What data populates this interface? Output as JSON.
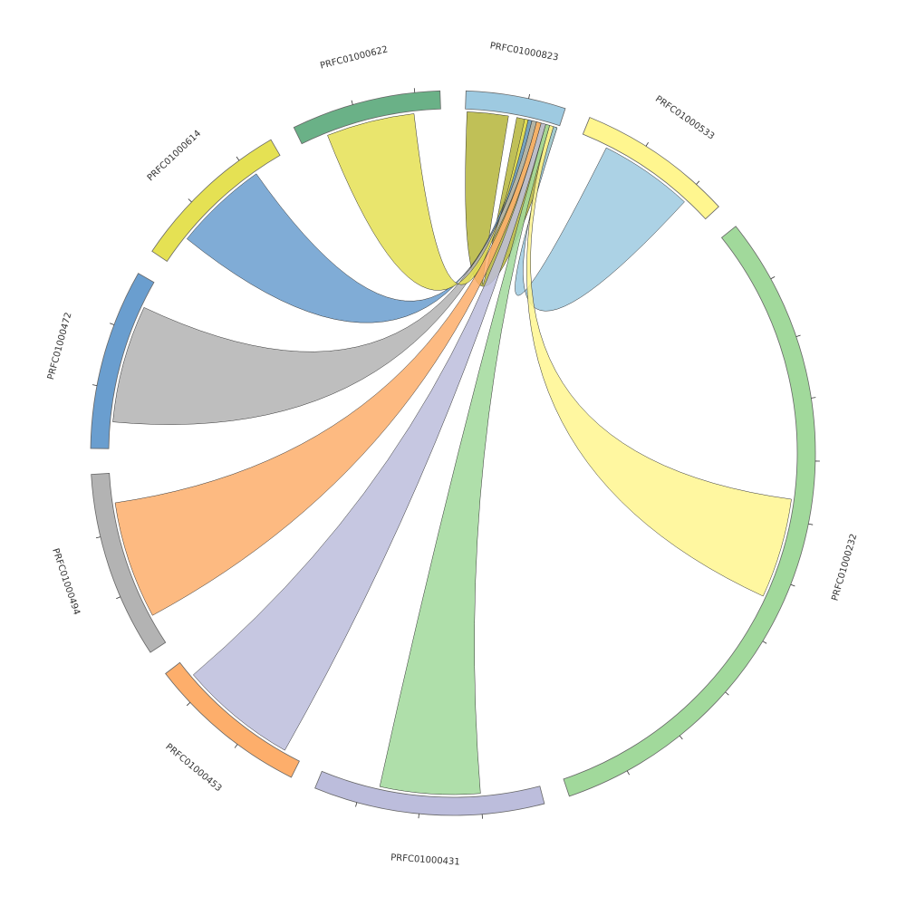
{
  "chart_data": {
    "type": "chord",
    "nodes": [
      {
        "name": "PRFC01000823",
        "value": 16,
        "color": "#9ecae1"
      },
      {
        "name": "PRFC01000533",
        "value": 25,
        "color": "#fff68f"
      },
      {
        "name": "PRFC01000232",
        "value": 110,
        "color": "#a1d99b"
      },
      {
        "name": "PRFC01000431",
        "value": 37,
        "color": "#bcbddc"
      },
      {
        "name": "PRFC01000453",
        "value": 26,
        "color": "#fdae6b"
      },
      {
        "name": "PRFC01000494",
        "value": 30,
        "color": "#b3b3b3"
      },
      {
        "name": "PRFC01000472",
        "value": 29,
        "color": "#6a9ecf"
      },
      {
        "name": "PRFC01000614",
        "value": 26,
        "color": "#e5e153"
      },
      {
        "name": "PRFC01000622",
        "value": 24,
        "color": "#6ab187"
      }
    ],
    "links": [
      {
        "source": 0,
        "target": 0,
        "value": 14,
        "color": "#b5b53a"
      },
      {
        "source": 0,
        "target": 1,
        "value": 16,
        "color": "#9ecae1"
      },
      {
        "source": 0,
        "target": 2,
        "value": 17,
        "color": "#fff68f"
      },
      {
        "source": 0,
        "target": 3,
        "value": 17,
        "color": "#a1d99b"
      },
      {
        "source": 0,
        "target": 4,
        "value": 20,
        "color": "#bcbddc"
      },
      {
        "source": 0,
        "target": 5,
        "value": 20,
        "color": "#fdae6b"
      },
      {
        "source": 0,
        "target": 6,
        "value": 20,
        "color": "#b3b3b3"
      },
      {
        "source": 0,
        "target": 7,
        "value": 16,
        "color": "#6a9ecf"
      },
      {
        "source": 0,
        "target": 8,
        "value": 15,
        "color": "#e5e153"
      }
    ]
  }
}
